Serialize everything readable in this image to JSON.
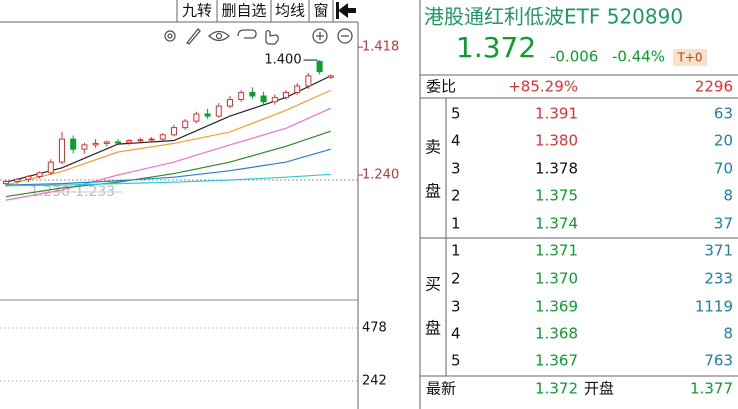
{
  "toolbar": {
    "buttons": [
      "九转",
      "删自选",
      "均线",
      "窗"
    ]
  },
  "chart": {
    "type": "candlestick",
    "up_color": "#e0322f",
    "down_color": "#0a9e2c",
    "candles": [
      [
        1.228,
        1.233,
        1.224,
        1.231
      ],
      [
        1.231,
        1.236,
        1.228,
        1.234
      ],
      [
        1.234,
        1.24,
        1.23,
        1.238
      ],
      [
        1.238,
        1.245,
        1.235,
        1.243
      ],
      [
        1.243,
        1.262,
        1.24,
        1.258
      ],
      [
        1.258,
        1.3,
        1.255,
        1.29
      ],
      [
        1.29,
        1.295,
        1.27,
        1.276
      ],
      [
        1.276,
        1.285,
        1.27,
        1.282
      ],
      [
        1.282,
        1.29,
        1.278,
        1.284
      ],
      [
        1.284,
        1.288,
        1.28,
        1.286
      ],
      [
        1.286,
        1.29,
        1.283,
        1.285
      ],
      [
        1.285,
        1.29,
        1.282,
        1.288
      ],
      [
        1.288,
        1.292,
        1.285,
        1.289
      ],
      [
        1.289,
        1.293,
        1.286,
        1.29
      ],
      [
        1.29,
        1.298,
        1.288,
        1.296
      ],
      [
        1.296,
        1.31,
        1.294,
        1.306
      ],
      [
        1.306,
        1.318,
        1.303,
        1.315
      ],
      [
        1.315,
        1.328,
        1.312,
        1.325
      ],
      [
        1.325,
        1.332,
        1.318,
        1.322
      ],
      [
        1.322,
        1.34,
        1.32,
        1.336
      ],
      [
        1.336,
        1.35,
        1.333,
        1.345
      ],
      [
        1.345,
        1.358,
        1.342,
        1.355
      ],
      [
        1.355,
        1.362,
        1.346,
        1.35
      ],
      [
        1.35,
        1.356,
        1.338,
        1.342
      ],
      [
        1.342,
        1.352,
        1.338,
        1.348
      ],
      [
        1.348,
        1.358,
        1.345,
        1.355
      ],
      [
        1.355,
        1.368,
        1.352,
        1.364
      ],
      [
        1.364,
        1.382,
        1.36,
        1.378
      ],
      [
        1.398,
        1.4,
        1.38,
        1.384
      ],
      [
        1.376,
        1.38,
        1.374,
        1.378
      ]
    ],
    "ma_index": [
      0,
      5,
      10,
      15,
      20,
      25,
      29
    ],
    "ma": [
      {
        "color": "#222222",
        "values": [
          1.23,
          1.25,
          1.283,
          1.288,
          1.322,
          1.348,
          1.378
        ]
      },
      {
        "color": "#f0a030",
        "values": [
          1.226,
          1.245,
          1.272,
          1.284,
          1.3,
          1.33,
          1.358
        ]
      },
      {
        "color": "#f070c8",
        "values": [
          1.205,
          1.219,
          1.24,
          1.258,
          1.282,
          1.305,
          1.333
        ]
      },
      {
        "color": "#2a8a2a",
        "values": [
          1.21,
          1.222,
          1.23,
          1.242,
          1.258,
          1.28,
          1.301
        ]
      },
      {
        "color": "#2a7fd0",
        "values": [
          1.226,
          1.228,
          1.232,
          1.237,
          1.246,
          1.258,
          1.276
        ]
      },
      {
        "color": "#30c8d8",
        "values": [
          1.225,
          1.226,
          1.228,
          1.23,
          1.233,
          1.237,
          1.241
        ]
      }
    ],
    "ylim": [
      1.066,
      1.453
    ],
    "yticks": [
      1.418,
      {
        "value": 1.24,
        "label": "1.240"
      }
    ],
    "high_label": {
      "value": 1.4,
      "label": "1.400"
    },
    "range_label": "1.230-1.233",
    "volume": {
      "ylim": [
        117,
        594
      ],
      "yticks": [
        478,
        242
      ]
    }
  },
  "quote": {
    "title": "港股通红利低波ETF 520890",
    "price": "1.372",
    "change": "-0.006",
    "change_pct": "-0.44%",
    "badge": "T+0",
    "ratio": {
      "label": "委比",
      "value": "+85.29%",
      "diff": "2296"
    },
    "sell": {
      "labels": [
        "卖",
        "盘"
      ],
      "rows": [
        {
          "level": "5",
          "price": "1.391",
          "volume": "63",
          "color": "#e0322f"
        },
        {
          "level": "4",
          "price": "1.380",
          "volume": "20",
          "color": "#e0322f"
        },
        {
          "level": "3",
          "price": "1.378",
          "volume": "70",
          "color": "#111111"
        },
        {
          "level": "2",
          "price": "1.375",
          "volume": "8",
          "color": "#0a9e2c"
        },
        {
          "level": "1",
          "price": "1.374",
          "volume": "37",
          "color": "#0a9e2c"
        }
      ]
    },
    "buy": {
      "labels": [
        "买",
        "盘"
      ],
      "rows": [
        {
          "level": "1",
          "price": "1.371",
          "volume": "371",
          "color": "#0a9e2c"
        },
        {
          "level": "2",
          "price": "1.370",
          "volume": "233",
          "color": "#0a9e2c"
        },
        {
          "level": "3",
          "price": "1.369",
          "volume": "1119",
          "color": "#0a9e2c"
        },
        {
          "level": "4",
          "price": "1.368",
          "volume": "8",
          "color": "#0a9e2c"
        },
        {
          "level": "5",
          "price": "1.367",
          "volume": "763",
          "color": "#0a9e2c"
        }
      ]
    },
    "last": {
      "label": "最新",
      "price": "1.372",
      "open_label": "开盘",
      "open": "1.377"
    }
  }
}
